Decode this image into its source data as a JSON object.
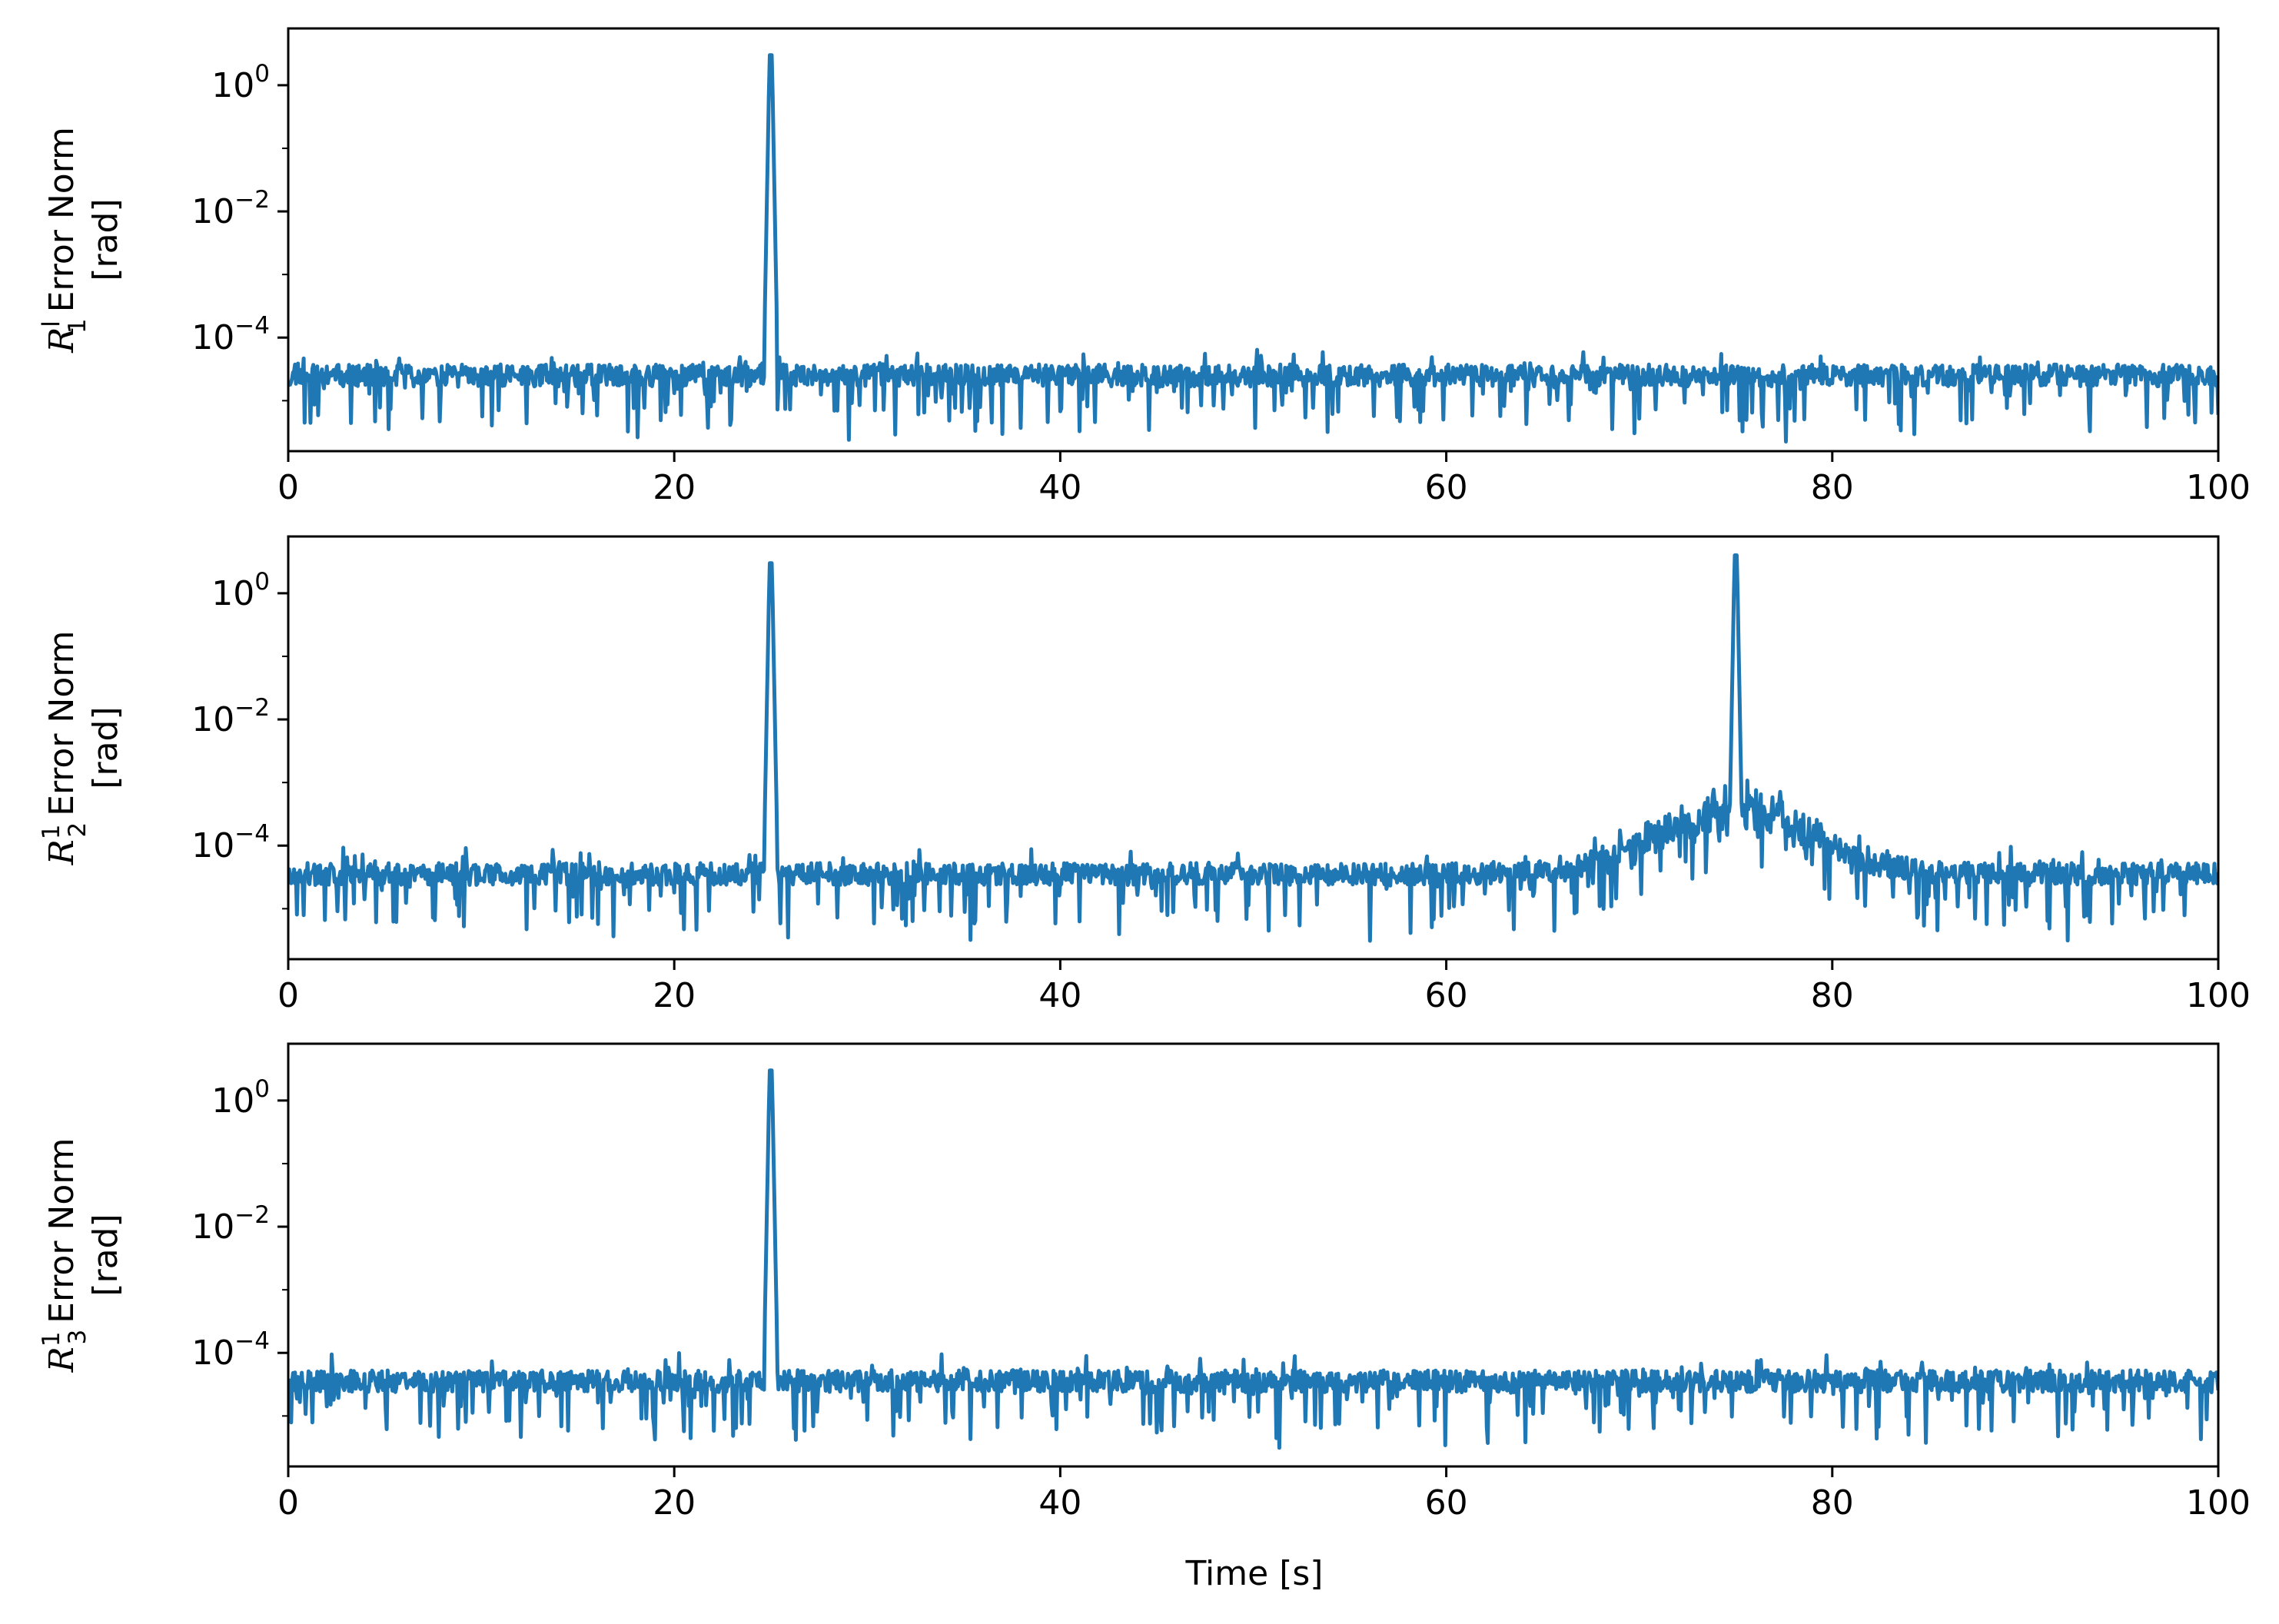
{
  "figure": {
    "xlabel": "Time [s]",
    "line_color": "#1f77b4"
  },
  "chart_data": [
    {
      "type": "line",
      "ylabel": {
        "symbol": "R",
        "sub": "1",
        "sup": "l",
        "text": "Error Norm",
        "unit": "[rad]"
      },
      "xlim": [
        0,
        100
      ],
      "ylim_log10": [
        -5.8,
        0.9
      ],
      "yscale": "log",
      "xticks": [
        "0",
        "20",
        "40",
        "60",
        "80",
        "100"
      ],
      "yticks": [
        {
          "base": "10",
          "exp": "0"
        },
        {
          "base": "10",
          "exp": "−2"
        },
        {
          "base": "10",
          "exp": "−4"
        }
      ],
      "baseline_log10": -4.6,
      "spikes": [
        {
          "x": 25.0,
          "peak": 3.0
        }
      ],
      "seed": 11
    },
    {
      "type": "line",
      "ylabel": {
        "symbol": "R",
        "sub": "2",
        "sup": "1",
        "text": "Error Norm",
        "unit": "[rad]"
      },
      "xlim": [
        0,
        100
      ],
      "ylim_log10": [
        -5.8,
        0.9
      ],
      "yscale": "log",
      "xticks": [
        "0",
        "20",
        "40",
        "60",
        "80",
        "100"
      ],
      "yticks": [
        {
          "base": "10",
          "exp": "0"
        },
        {
          "base": "10",
          "exp": "−2"
        },
        {
          "base": "10",
          "exp": "−4"
        }
      ],
      "baseline_log10": -4.45,
      "spikes": [
        {
          "x": 25.0,
          "peak": 3.0
        },
        {
          "x": 75.0,
          "peak": 4.0
        }
      ],
      "bump": {
        "center": 75.0,
        "width": 5.5,
        "height_log10": 1.35
      },
      "seed": 23
    },
    {
      "type": "line",
      "ylabel": {
        "symbol": "R",
        "sub": "3",
        "sup": "1",
        "text": "Error Norm",
        "unit": "[rad]"
      },
      "xlim": [
        0,
        100
      ],
      "ylim_log10": [
        -5.8,
        0.9
      ],
      "yscale": "log",
      "xticks": [
        "0",
        "20",
        "40",
        "60",
        "80",
        "100"
      ],
      "yticks": [
        {
          "base": "10",
          "exp": "0"
        },
        {
          "base": "10",
          "exp": "−2"
        },
        {
          "base": "10",
          "exp": "−4"
        }
      ],
      "baseline_log10": -4.45,
      "spikes": [
        {
          "x": 25.0,
          "peak": 3.0
        }
      ],
      "seed": 37
    }
  ]
}
